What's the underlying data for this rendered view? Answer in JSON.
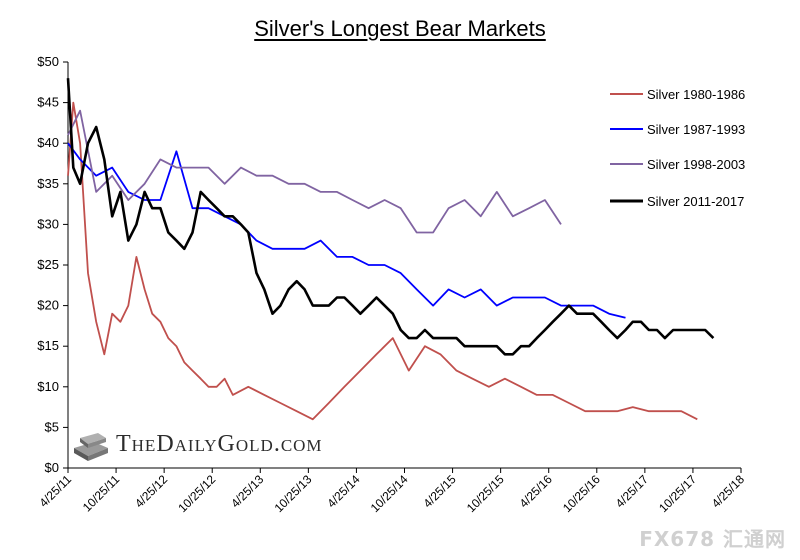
{
  "title": "Silver's Longest Bear Markets",
  "brand": "TheDailyGold.com",
  "watermark": "FX678 汇通网",
  "chart_data": {
    "type": "line",
    "title": "Silver's Longest Bear Markets",
    "xlabel": "",
    "ylabel": "",
    "ylim": [
      0,
      50
    ],
    "xlim": [
      "2011-04-25",
      "2018-04-25"
    ],
    "y_ticks": [
      "$0",
      "$5",
      "$10",
      "$15",
      "$20",
      "$25",
      "$30",
      "$35",
      "$40",
      "$45",
      "$50"
    ],
    "x_ticks": [
      "4/25/11",
      "10/25/11",
      "4/25/12",
      "10/25/12",
      "4/25/13",
      "10/25/13",
      "4/25/14",
      "10/25/14",
      "4/25/15",
      "10/25/15",
      "4/25/16",
      "10/25/16",
      "4/25/17",
      "10/25/17",
      "4/25/18"
    ],
    "grid": false,
    "legend_position": "right",
    "series": [
      {
        "name": "Silver 1980-1986",
        "color": "#c0504d",
        "x": [
          "2011-04-25",
          "2011-05-15",
          "2011-06-10",
          "2011-07-10",
          "2011-08-10",
          "2011-09-10",
          "2011-10-10",
          "2011-11-10",
          "2011-12-10",
          "2012-01-10",
          "2012-02-10",
          "2012-03-10",
          "2012-04-10",
          "2012-05-10",
          "2012-06-10",
          "2012-07-10",
          "2012-08-10",
          "2012-09-10",
          "2012-10-10",
          "2012-11-10",
          "2012-12-10",
          "2013-01-10",
          "2013-03-10",
          "2013-05-10",
          "2013-07-10",
          "2013-09-10",
          "2013-11-10",
          "2014-01-10",
          "2014-03-10",
          "2014-05-10",
          "2014-07-10",
          "2014-09-10",
          "2014-11-10",
          "2015-01-10",
          "2015-03-10",
          "2015-05-10",
          "2015-07-10",
          "2015-09-10",
          "2015-11-10",
          "2016-01-10",
          "2016-03-10",
          "2016-05-10",
          "2016-07-10",
          "2016-09-10",
          "2016-11-10",
          "2017-01-10",
          "2017-03-10",
          "2017-05-10",
          "2017-07-10",
          "2017-09-10",
          "2017-11-10"
        ],
        "values": [
          36,
          45,
          40,
          24,
          18,
          14,
          19,
          18,
          20,
          26,
          22,
          19,
          18,
          16,
          15,
          13,
          12,
          11,
          10,
          10,
          11,
          9,
          10,
          9,
          8,
          7,
          6,
          8,
          10,
          12,
          14,
          16,
          12,
          15,
          14,
          12,
          11,
          10,
          11,
          10,
          9,
          9,
          8,
          7,
          7,
          7,
          7.5,
          7,
          7,
          7,
          6
        ]
      },
      {
        "name": "Silver 1987-1993",
        "color": "#0000ff",
        "x": [
          "2011-04-25",
          "2011-06-10",
          "2011-08-10",
          "2011-10-10",
          "2011-12-10",
          "2012-02-10",
          "2012-04-10",
          "2012-06-10",
          "2012-08-10",
          "2012-10-10",
          "2012-12-10",
          "2013-02-10",
          "2013-04-10",
          "2013-06-10",
          "2013-08-10",
          "2013-10-10",
          "2013-12-10",
          "2014-02-10",
          "2014-04-10",
          "2014-06-10",
          "2014-08-10",
          "2014-10-10",
          "2014-12-10",
          "2015-02-10",
          "2015-04-10",
          "2015-06-10",
          "2015-08-10",
          "2015-10-10",
          "2015-12-10",
          "2016-02-10",
          "2016-04-10",
          "2016-06-10",
          "2016-08-10",
          "2016-10-10",
          "2016-12-10",
          "2017-02-10"
        ],
        "values": [
          40,
          38,
          36,
          37,
          34,
          33,
          33,
          39,
          32,
          32,
          31,
          30,
          28,
          27,
          27,
          27,
          28,
          26,
          26,
          25,
          25,
          24,
          22,
          20,
          22,
          21,
          22,
          20,
          21,
          21,
          21,
          20,
          20,
          20,
          19,
          18.5
        ]
      },
      {
        "name": "Silver 1998-2003",
        "color": "#8064a2",
        "x": [
          "2011-04-25",
          "2011-06-10",
          "2011-08-10",
          "2011-10-10",
          "2011-12-10",
          "2012-02-10",
          "2012-04-10",
          "2012-06-10",
          "2012-08-10",
          "2012-10-10",
          "2012-12-10",
          "2013-02-10",
          "2013-04-10",
          "2013-06-10",
          "2013-08-10",
          "2013-10-10",
          "2013-12-10",
          "2014-02-10",
          "2014-04-10",
          "2014-06-10",
          "2014-08-10",
          "2014-10-10",
          "2014-12-10",
          "2015-02-10",
          "2015-04-10",
          "2015-06-10",
          "2015-08-10",
          "2015-10-10",
          "2015-12-10",
          "2016-02-10",
          "2016-04-10",
          "2016-06-10"
        ],
        "values": [
          41,
          44,
          34,
          36,
          33,
          35,
          38,
          37,
          37,
          37,
          35,
          37,
          36,
          36,
          35,
          35,
          34,
          34,
          33,
          32,
          33,
          32,
          29,
          29,
          32,
          33,
          31,
          34,
          31,
          32,
          33,
          30
        ]
      },
      {
        "name": "Silver 2011-2017",
        "color": "#000000",
        "x": [
          "2011-04-25",
          "2011-05-15",
          "2011-06-10",
          "2011-07-10",
          "2011-08-10",
          "2011-09-10",
          "2011-10-10",
          "2011-11-10",
          "2011-12-10",
          "2012-01-10",
          "2012-02-10",
          "2012-03-10",
          "2012-04-10",
          "2012-05-10",
          "2012-06-10",
          "2012-07-10",
          "2012-08-10",
          "2012-09-10",
          "2012-10-10",
          "2012-11-10",
          "2012-12-10",
          "2013-01-10",
          "2013-02-10",
          "2013-03-10",
          "2013-04-10",
          "2013-05-10",
          "2013-06-10",
          "2013-07-10",
          "2013-08-10",
          "2013-09-10",
          "2013-10-10",
          "2013-11-10",
          "2013-12-10",
          "2014-01-10",
          "2014-02-10",
          "2014-03-10",
          "2014-04-10",
          "2014-05-10",
          "2014-06-10",
          "2014-07-10",
          "2014-08-10",
          "2014-09-10",
          "2014-10-10",
          "2014-11-10",
          "2014-12-10",
          "2015-01-10",
          "2015-02-10",
          "2015-03-10",
          "2015-04-10",
          "2015-05-10",
          "2015-06-10",
          "2015-07-10",
          "2015-08-10",
          "2015-09-10",
          "2015-10-10",
          "2015-11-10",
          "2015-12-10",
          "2016-01-10",
          "2016-02-10",
          "2016-03-10",
          "2016-04-10",
          "2016-05-10",
          "2016-06-10",
          "2016-07-10",
          "2016-08-10",
          "2016-09-10",
          "2016-10-10",
          "2016-11-10",
          "2016-12-10",
          "2017-01-10",
          "2017-02-10",
          "2017-03-10",
          "2017-04-10",
          "2017-05-10",
          "2017-06-10",
          "2017-07-10",
          "2017-08-10",
          "2017-09-10",
          "2017-10-10",
          "2017-11-10",
          "2017-12-10",
          "2018-01-10"
        ],
        "values": [
          48,
          37,
          35,
          40,
          42,
          38,
          31,
          34,
          28,
          30,
          34,
          32,
          32,
          29,
          28,
          27,
          29,
          34,
          33,
          32,
          31,
          31,
          30,
          29,
          24,
          22,
          19,
          20,
          22,
          23,
          22,
          20,
          20,
          20,
          21,
          21,
          20,
          19,
          20,
          21,
          20,
          19,
          17,
          16,
          16,
          17,
          16,
          16,
          16,
          16,
          15,
          15,
          15,
          15,
          15,
          14,
          14,
          15,
          15,
          16,
          17,
          18,
          19,
          20,
          19,
          19,
          19,
          18,
          17,
          16,
          17,
          18,
          18,
          17,
          17,
          16,
          17,
          17,
          17,
          17,
          17,
          16
        ]
      }
    ]
  }
}
